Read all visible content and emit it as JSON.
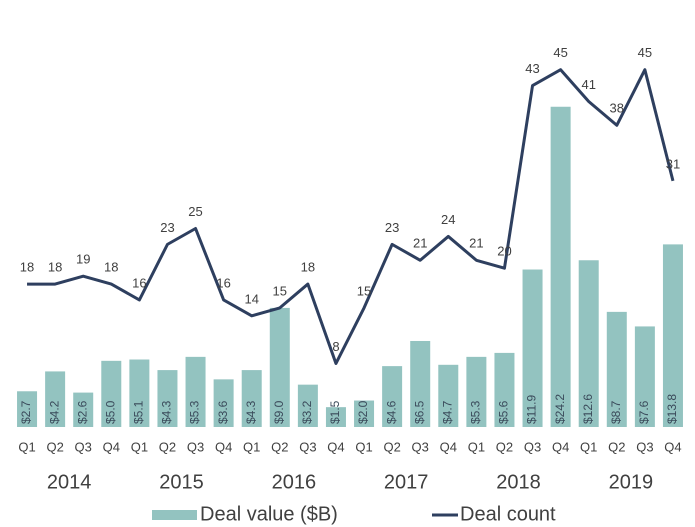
{
  "chart_data": {
    "type": "combo",
    "categories": [
      "Q1",
      "Q2",
      "Q3",
      "Q4",
      "Q1",
      "Q2",
      "Q3",
      "Q4",
      "Q1",
      "Q2",
      "Q3",
      "Q4",
      "Q1",
      "Q2",
      "Q3",
      "Q4",
      "Q1",
      "Q2",
      "Q3",
      "Q4",
      "Q1",
      "Q2",
      "Q3",
      "Q4"
    ],
    "years": [
      "2014",
      "2015",
      "2016",
      "2017",
      "2018",
      "2019"
    ],
    "ylim": [
      0,
      30
    ],
    "y2lim": [
      0,
      50
    ],
    "series": [
      {
        "name": "Deal value ($B)",
        "type": "bar",
        "color": "#93c3c0",
        "values": [
          2.7,
          4.2,
          2.6,
          5.0,
          5.1,
          4.3,
          5.3,
          3.6,
          4.3,
          9.0,
          3.2,
          1.5,
          2.0,
          4.6,
          6.5,
          4.7,
          5.3,
          5.6,
          11.9,
          24.2,
          12.6,
          8.7,
          7.6,
          13.8
        ],
        "value_labels": [
          "$2.7",
          "$4.2",
          "$2.6",
          "$5.0",
          "$5.1",
          "$4.3",
          "$5.3",
          "$3.6",
          "$4.3",
          "$9.0",
          "$3.2",
          "$1.5",
          "$2.0",
          "$4.6",
          "$6.5",
          "$4.7",
          "$5.3",
          "$5.6",
          "$11.9",
          "$24.2",
          "$12.6",
          "$8.7",
          "$7.6",
          "$13.8"
        ]
      },
      {
        "name": "Deal count",
        "type": "line",
        "axis": "y2",
        "color": "#2e3f5f",
        "values": [
          18,
          18,
          19,
          18,
          16,
          23,
          25,
          16,
          14,
          15,
          18,
          8,
          15,
          23,
          21,
          24,
          21,
          20,
          43,
          45,
          41,
          38,
          45,
          31
        ]
      }
    ]
  }
}
